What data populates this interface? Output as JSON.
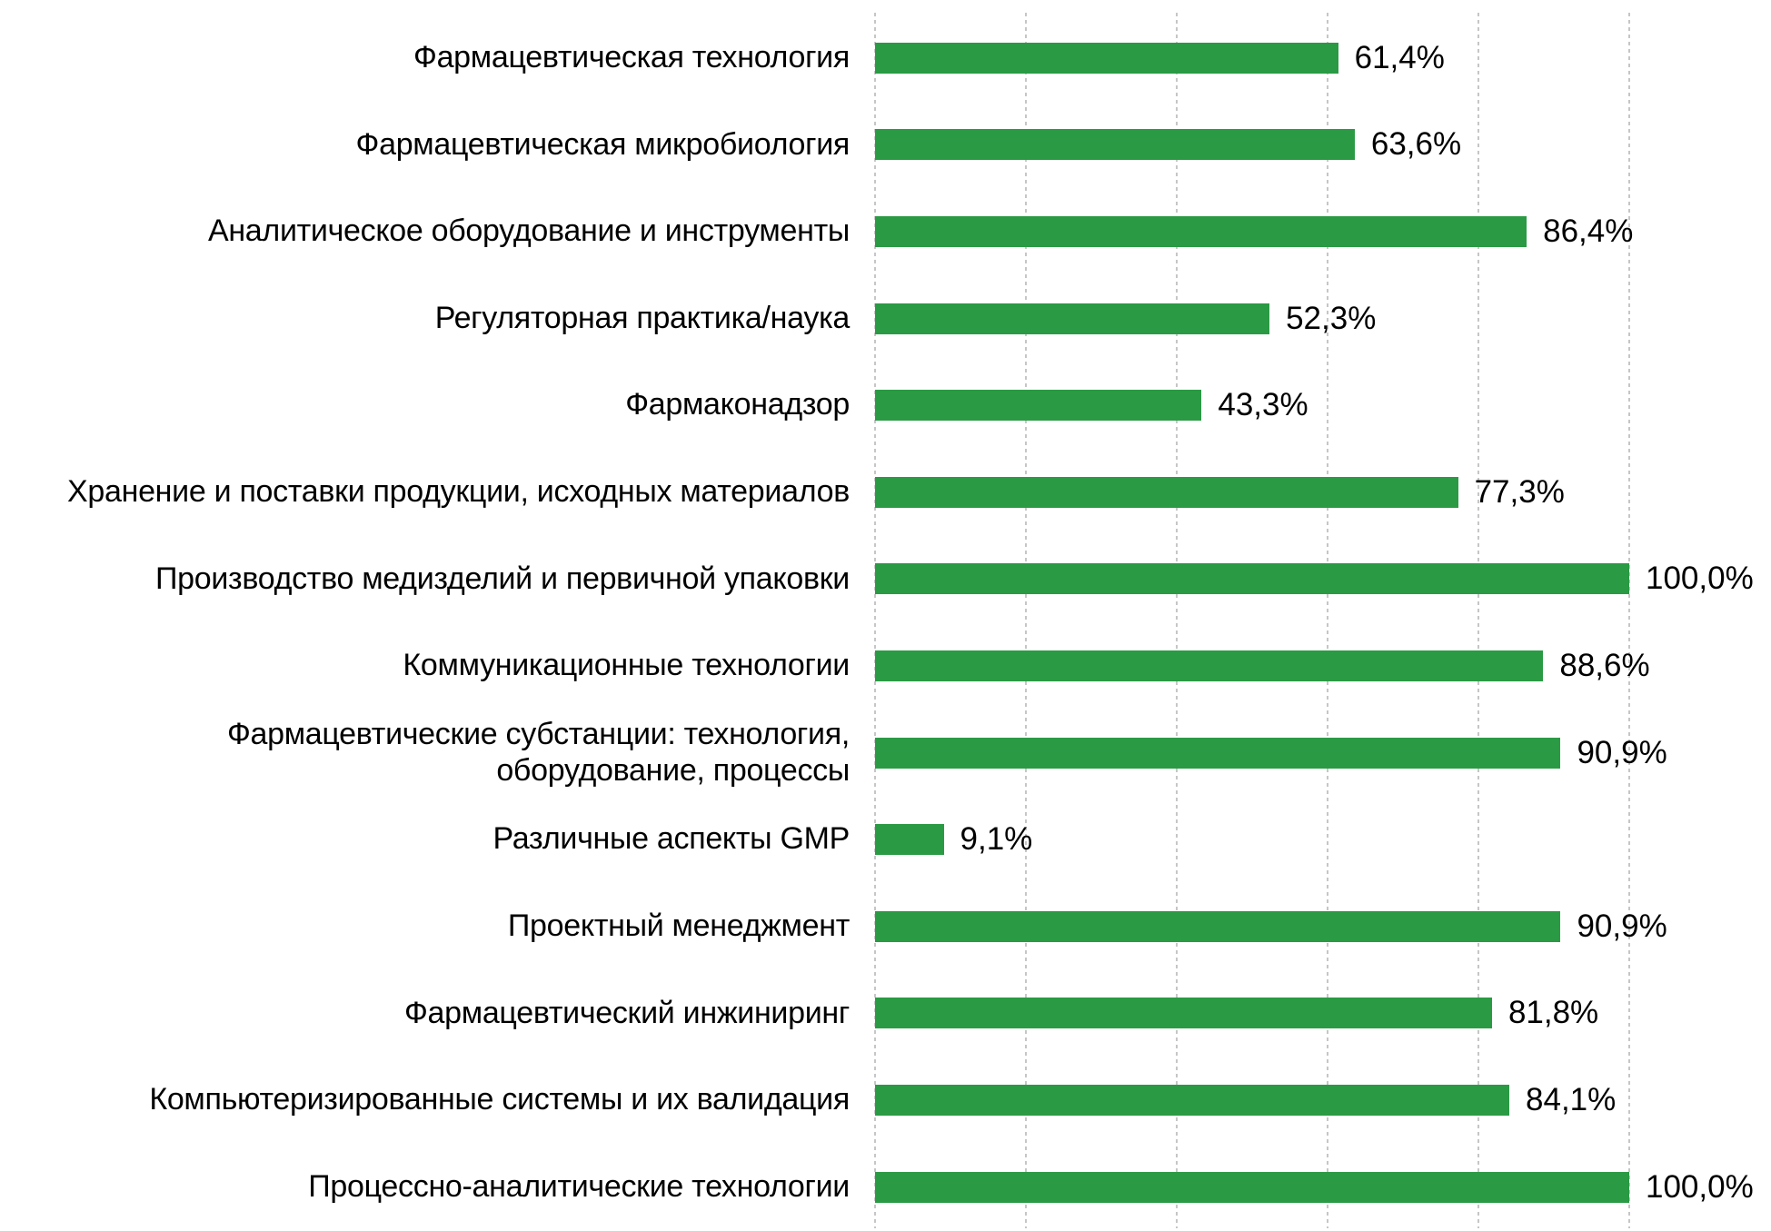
{
  "chart_data": {
    "type": "bar",
    "orientation": "horizontal",
    "title": "",
    "xlabel": "",
    "ylabel": "",
    "grid_on": true,
    "legend_position": "none",
    "xlim": [
      0,
      100
    ],
    "gridlines_percent": [
      0,
      20,
      40,
      60,
      80,
      100
    ],
    "bar_color": "#2a9a44",
    "gridline_color": "#c6c6c6",
    "background_color": "#ffffff",
    "text_color": "#000000",
    "categories": [
      "Фармацевтическая технология",
      "Фармацевтическая микробиология",
      "Аналитическое оборудование и инструменты",
      "Регуляторная практика/наука",
      "Фармаконадзор",
      "Хранение и поставки продукции, исходных материалов",
      "Производство медизделий и первичной упаковки",
      "Коммуникационные технологии",
      "Фармацевтические субстанции: технология,\nоборудование, процессы",
      "Различные аспекты GMP",
      "Проектный менеджмент",
      "Фармацевтический инжиниринг",
      "Компьютеризированные системы и их валидация",
      "Процессно-аналитические технологии"
    ],
    "values": [
      61.4,
      63.6,
      86.4,
      52.3,
      43.3,
      77.3,
      100.0,
      88.6,
      90.9,
      9.1,
      90.9,
      81.8,
      84.1,
      100.0
    ],
    "value_labels": [
      "61,4%",
      "63,6%",
      "86,4%",
      "52,3%",
      "43,3%",
      "77,3%",
      "100,0%",
      "88,6%",
      "90,9%",
      "9,1%",
      "90,9%",
      "81,8%",
      "84,1%",
      "100,0%"
    ]
  }
}
